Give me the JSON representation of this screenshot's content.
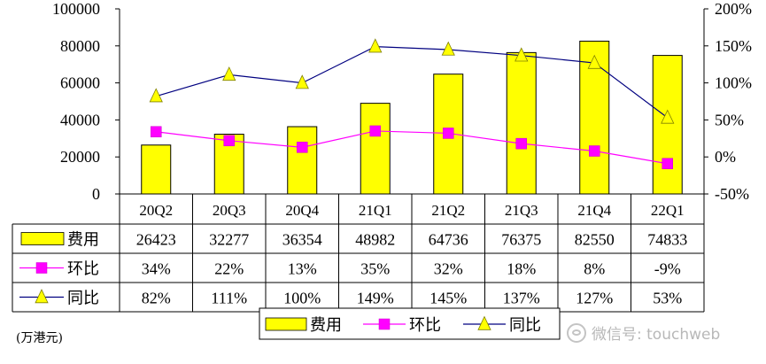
{
  "chart_data": {
    "type": "bar",
    "categories": [
      "20Q2",
      "20Q3",
      "20Q4",
      "21Q1",
      "21Q2",
      "21Q3",
      "21Q4",
      "22Q1"
    ],
    "series": [
      {
        "name": "费用",
        "kind": "bar",
        "axis": "left",
        "color": "#ffff00",
        "values": [
          26423,
          32277,
          36354,
          48982,
          64736,
          76375,
          82550,
          74833
        ]
      },
      {
        "name": "环比",
        "kind": "line",
        "axis": "right",
        "color": "#ff00ff",
        "marker": "square",
        "values": [
          34,
          22,
          13,
          35,
          32,
          18,
          8,
          -9
        ],
        "labels": [
          "34%",
          "22%",
          "13%",
          "35%",
          "32%",
          "18%",
          "8%",
          "-9%"
        ]
      },
      {
        "name": "同比",
        "kind": "line",
        "axis": "right",
        "color": "#000080",
        "marker": "triangle",
        "values": [
          82,
          111,
          100,
          149,
          145,
          137,
          127,
          53
        ],
        "labels": [
          "82%",
          "111%",
          "100%",
          "149%",
          "145%",
          "137%",
          "127%",
          "53%"
        ]
      }
    ],
    "y_left": {
      "min": 0,
      "max": 100000,
      "ticks": [
        "0",
        "20000",
        "40000",
        "60000",
        "80000",
        "100000"
      ]
    },
    "y_right": {
      "min": -50,
      "max": 200,
      "ticks": [
        "-50%",
        "0%",
        "50%",
        "100%",
        "150%",
        "200%"
      ]
    },
    "bar_labels": [
      "26423",
      "32277",
      "36354",
      "48982",
      "64736",
      "76375",
      "82550",
      "74833"
    ],
    "legend": {
      "position": "bottom",
      "items": [
        "费用",
        "环比",
        "同比"
      ]
    },
    "unit_note": "(万港元)",
    "grid": false
  },
  "watermark": "微信号: touchweb"
}
